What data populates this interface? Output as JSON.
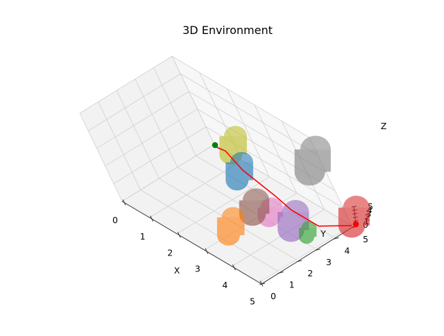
{
  "chart_data": {
    "type": "3d-scene",
    "title": "3D Environment",
    "xlabel": "X",
    "ylabel": "Y",
    "zlabel": "Z",
    "xlim": [
      0,
      5
    ],
    "ylim": [
      0,
      5
    ],
    "zlim": [
      0,
      5
    ],
    "x_ticks": [
      "0",
      "1",
      "2",
      "3",
      "4",
      "5"
    ],
    "y_ticks": [
      "0",
      "1",
      "2",
      "3",
      "4",
      "5"
    ],
    "z_ticks": [
      "0",
      "1",
      "2",
      "3",
      "4",
      "5"
    ],
    "grid": true,
    "obstacles": [
      {
        "name": "cylinder-blue",
        "color": "#1f77b4",
        "x": 1.5,
        "y": 4.0,
        "radius": 0.3,
        "height": 2
      },
      {
        "name": "cylinder-orange",
        "color": "#ff7f0e",
        "x": 3.0,
        "y": 1.3,
        "radius": 0.3,
        "height": 2
      },
      {
        "name": "cylinder-green",
        "color": "#2ca02c",
        "x": 4.5,
        "y": 3.3,
        "radius": 0.2,
        "height": 1
      },
      {
        "name": "cylinder-red",
        "color": "#d62728",
        "x": 5.0,
        "y": 5.0,
        "radius": 0.35,
        "height": 2
      },
      {
        "name": "cylinder-purple",
        "color": "#9467bd",
        "x": 4.0,
        "y": 3.2,
        "radius": 0.35,
        "height": 2
      },
      {
        "name": "cylinder-brown",
        "color": "#8c564b",
        "x": 2.8,
        "y": 2.9,
        "radius": 0.35,
        "height": 1.5
      },
      {
        "name": "cylinder-pink",
        "color": "#e377c2",
        "x": 3.2,
        "y": 3.2,
        "radius": 0.3,
        "height": 1
      },
      {
        "name": "cylinder-gray",
        "color": "#7f7f7f",
        "x": 2.6,
        "y": 6.3,
        "radius": 0.4,
        "height": 2.5
      },
      {
        "name": "cylinder-olive",
        "color": "#bcbd22",
        "x": 0.6,
        "y": 5.0,
        "radius": 0.3,
        "height": 2
      }
    ],
    "path": {
      "color": "#ff0000",
      "points": [
        [
          0,
          4.9
        ],
        [
          0.4,
          5.0
        ],
        [
          1.3,
          4.6
        ],
        [
          2.7,
          4.3
        ],
        [
          3.4,
          4.1
        ],
        [
          4.4,
          4.1
        ],
        [
          5.0,
          5.0
        ]
      ]
    },
    "start": {
      "color": "#008000",
      "x": 0,
      "y": 5
    },
    "goal": {
      "color": "#ff0000",
      "x": 5,
      "y": 5
    }
  }
}
